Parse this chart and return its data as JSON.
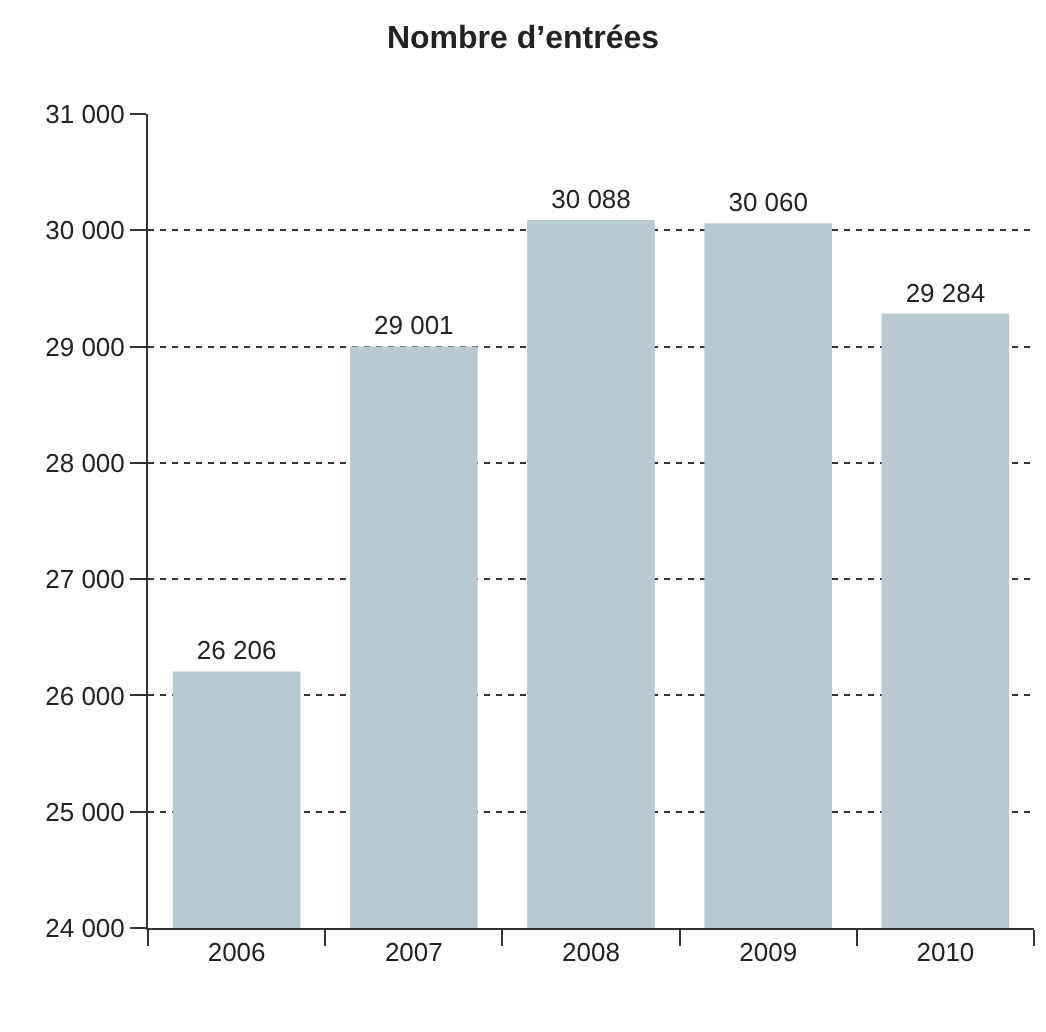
{
  "chart_data": {
    "type": "bar",
    "title": "Nombre d’entrées",
    "categories": [
      "2006",
      "2007",
      "2008",
      "2009",
      "2010"
    ],
    "values": [
      26206,
      29001,
      30088,
      30060,
      29284
    ],
    "value_labels": [
      "26 206",
      "29 001",
      "30 088",
      "30 060",
      "29 284"
    ],
    "color": "#b8c9d1",
    "ylim": [
      24000,
      31000
    ],
    "yticks": [
      {
        "value": 24000,
        "label": "24 000"
      },
      {
        "value": 25000,
        "label": "25 000"
      },
      {
        "value": 26000,
        "label": "26 000"
      },
      {
        "value": 27000,
        "label": "27 000"
      },
      {
        "value": 28000,
        "label": "28 000"
      },
      {
        "value": 29000,
        "label": "29 000"
      },
      {
        "value": 30000,
        "label": "30 000"
      },
      {
        "value": 31000,
        "label": "31 000"
      }
    ],
    "grid": "y"
  }
}
